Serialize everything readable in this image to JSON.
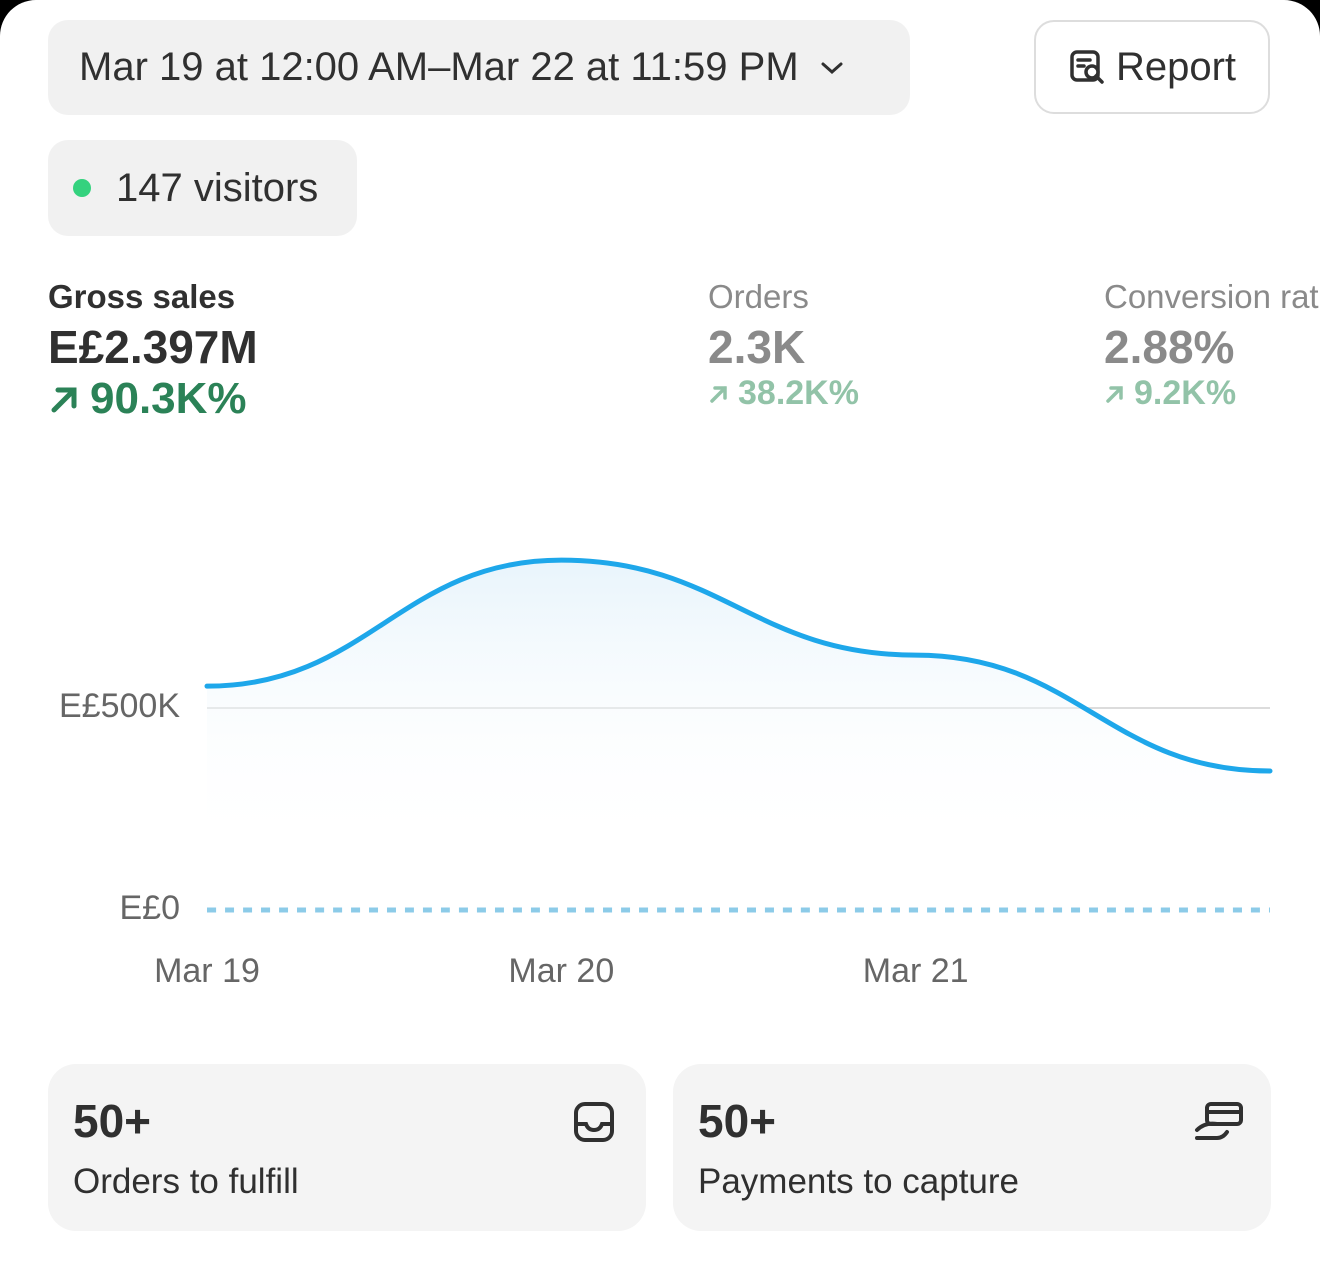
{
  "header": {
    "date_range": "Mar 19 at 12:00 AM–Mar 22 at 11:59 PM",
    "report_button": "Report"
  },
  "visitors": "147 visitors",
  "metrics": [
    {
      "label": "Gross sales",
      "value": "E£2.397M",
      "change": "90.3K%"
    },
    {
      "label": "Orders",
      "value": "2.3K",
      "change": "38.2K%"
    },
    {
      "label": "Conversion rate",
      "value": "2.88%",
      "change": "9.2K%"
    }
  ],
  "chart_data": {
    "type": "line",
    "x": [
      "Mar 19",
      "Mar 20",
      "Mar 21",
      null
    ],
    "series": [
      {
        "color": "#1ea7ea",
        "values": [
          554000,
          866000,
          631000,
          344000
        ]
      },
      {
        "color": "#8ccbe8",
        "dashed": true,
        "values": [
          0,
          0,
          0,
          0
        ]
      }
    ],
    "ylim": [
      0,
      1000000
    ],
    "yticks": [
      {
        "value": 0,
        "label": "E£0"
      },
      {
        "value": 500000,
        "label": "E£500K"
      }
    ],
    "grid": true
  },
  "cards": [
    {
      "value": "50+",
      "label": "Orders to fulfill"
    },
    {
      "value": "50+",
      "label": "Payments to capture"
    }
  ]
}
